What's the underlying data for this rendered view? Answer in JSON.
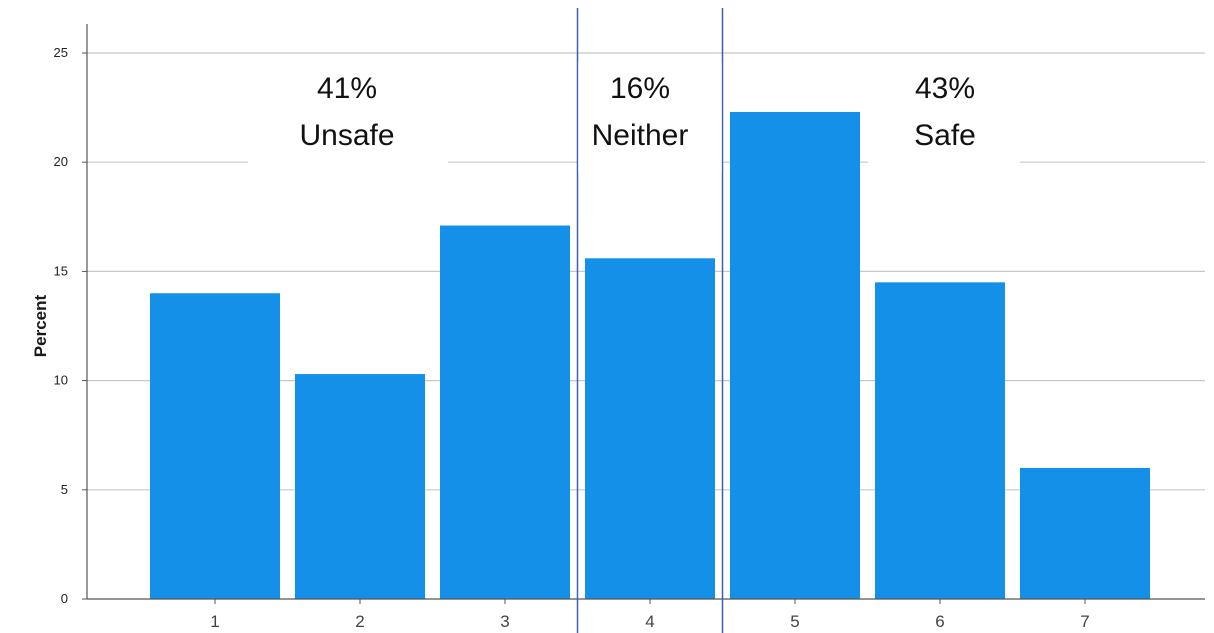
{
  "chart_data": {
    "type": "bar",
    "title": "",
    "xlabel": "",
    "ylabel": "Percent",
    "categories": [
      "1",
      "2",
      "3",
      "4",
      "5",
      "6",
      "7"
    ],
    "values": [
      14.0,
      10.3,
      17.1,
      15.6,
      22.3,
      14.5,
      6.0
    ],
    "ylim": [
      0,
      25
    ],
    "yticks": [
      "0",
      "5",
      "10",
      "15",
      "20",
      "25"
    ],
    "grid": "horizontal",
    "bar_color": "#1490e8",
    "divider_color": "#3f5fb5",
    "group_dividers_after_categories": [
      "3",
      "4"
    ],
    "annotations": [
      {
        "percent": "41%",
        "label": "Unsafe"
      },
      {
        "percent": "16%",
        "label": "Neither"
      },
      {
        "percent": "43%",
        "label": "Safe"
      }
    ]
  }
}
